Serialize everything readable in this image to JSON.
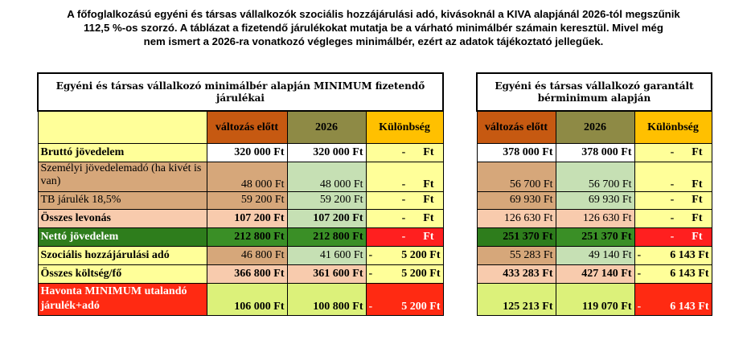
{
  "intro": {
    "line1": "A főfoglalkozású egyéni és társas vállalkozók szociális hozzájárulási adó, kivásoknál a KIVA alapjánál 2026-tól megszűnik",
    "line2": "112,5 %-os szorzó. A táblázat a fizetendő járulékokat mutatja be a várható minimálbér számain keresztül. Mivel még",
    "line3": "nem ismert a 2026-ra vonatkozó végleges minimálbér, ezért az adatok tájékoztató jellegűek."
  },
  "left_table": {
    "title": "Egyéni és társas vállalkozó minimálbér alapján MINIMUM fizetendő járulékai",
    "headers": [
      "változás előtt",
      "2026",
      "Különbség"
    ],
    "rows": [
      {
        "label": "Bruttó jövedelem",
        "before": "320 000 Ft",
        "after": "320 000 Ft",
        "sign": "-",
        "diff": "Ft"
      },
      {
        "label": "Személyi jövedelemadó (ha kivét is van)",
        "before": "48 000 Ft",
        "after": "48 000 Ft",
        "sign": "-",
        "diff": "Ft"
      },
      {
        "label": "TB járulék 18,5%",
        "before": "59 200 Ft",
        "after": "59 200 Ft",
        "sign": "-",
        "diff": "Ft"
      },
      {
        "label": "Összes levonás",
        "before": "107 200 Ft",
        "after": "107 200 Ft",
        "sign": "-",
        "diff": "Ft"
      },
      {
        "label": "Nettó jövedelem",
        "before": "212 800 Ft",
        "after": "212 800 Ft",
        "sign": "-",
        "diff": "Ft"
      },
      {
        "label": "Szociális hozzájárulási adó",
        "before": "46 800 Ft",
        "after": "41 600 Ft",
        "sign": "-",
        "diff": "5 200 Ft"
      },
      {
        "label": "Összes költség/fő",
        "before": "366 800 Ft",
        "after": "361 600 Ft",
        "sign": "-",
        "diff": "5 200 Ft"
      },
      {
        "label": "Havonta MINIMUM utalandó járulék+adó",
        "before": "106 000 Ft",
        "after": "100 800 Ft",
        "sign": "-",
        "diff": "5 200 Ft"
      }
    ]
  },
  "right_table": {
    "title": "Egyéni és társas vállalkozó garantált bérminimum alapján",
    "headers": [
      "változás előtt",
      "2026",
      "Különbség"
    ],
    "rows": [
      {
        "before": "378 000 Ft",
        "after": "378 000 Ft",
        "sign": "-",
        "diff": "Ft"
      },
      {
        "before": "56 700 Ft",
        "after": "56 700 Ft",
        "sign": "-",
        "diff": "Ft"
      },
      {
        "before": "69 930 Ft",
        "after": "69 930 Ft",
        "sign": "-",
        "diff": "Ft"
      },
      {
        "before": "126 630 Ft",
        "after": "126 630 Ft",
        "sign": "-",
        "diff": "Ft"
      },
      {
        "before": "251 370 Ft",
        "after": "251 370 Ft",
        "sign": "-",
        "diff": "Ft"
      },
      {
        "before": "55 283 Ft",
        "after": "49 140 Ft",
        "sign": "-",
        "diff": "6 143 Ft"
      },
      {
        "before": "433 283 Ft",
        "after": "427 140 Ft",
        "sign": "-",
        "diff": "6 143 Ft"
      },
      {
        "before": "125 213 Ft",
        "after": "119 070 Ft",
        "sign": "-",
        "diff": "6 143 Ft"
      }
    ]
  }
}
